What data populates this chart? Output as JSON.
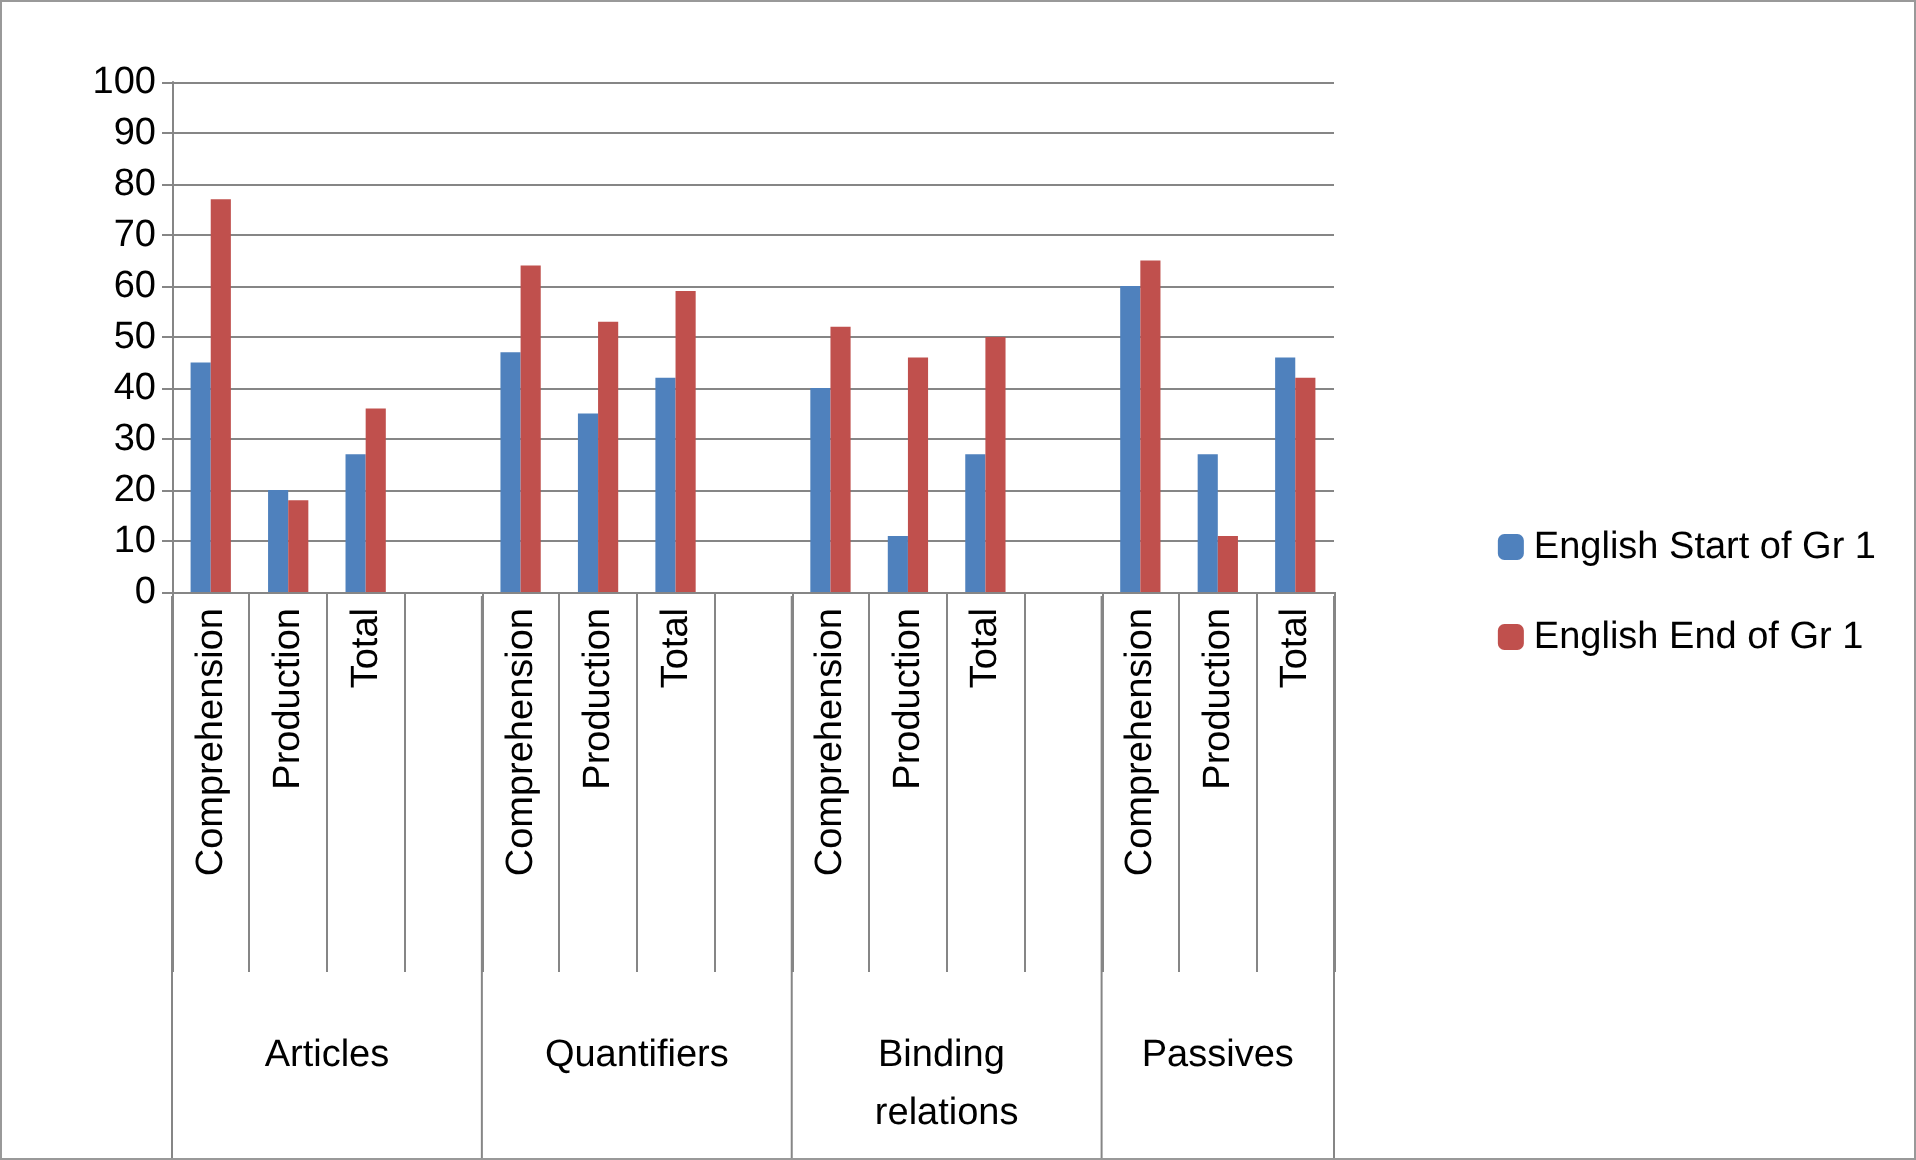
{
  "chart_data": {
    "type": "bar",
    "categories": [
      "Comprehension",
      "Production",
      "Total",
      null,
      "Comprehension",
      "Production",
      "Total",
      null,
      "Comprehension",
      "Production",
      "Total",
      null,
      "Comprehension",
      "Production",
      "Total"
    ],
    "series": [
      {
        "name": "English Start of Gr 1",
        "color": "#4f81bd",
        "values": [
          45,
          20,
          27,
          null,
          47,
          35,
          42,
          null,
          40,
          11,
          27,
          null,
          60,
          27,
          46
        ]
      },
      {
        "name": "English End of Gr 1",
        "color": "#c0504d",
        "values": [
          77,
          18,
          36,
          null,
          64,
          53,
          59,
          null,
          52,
          46,
          50,
          null,
          65,
          11,
          42
        ]
      }
    ],
    "annotations": [
      "Articles",
      "Quantifiers",
      "Binding relations",
      "Passives"
    ],
    "ylim": [
      0,
      100
    ],
    "yticks": [
      0,
      10,
      20,
      30,
      40,
      50,
      60,
      70,
      80,
      90,
      100
    ],
    "grid": "y",
    "legend": "right"
  }
}
